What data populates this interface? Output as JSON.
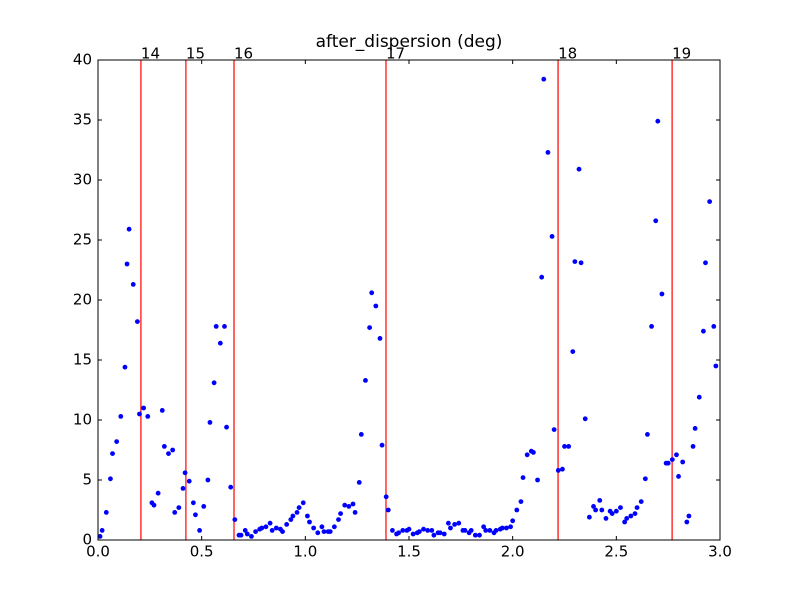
{
  "chart_data": {
    "type": "scatter",
    "title": "after_dispersion (deg)",
    "series": [
      {
        "color": "#0000ff",
        "x": [
          0.01,
          0.02,
          0.04,
          0.06,
          0.07,
          0.09,
          0.11,
          0.13,
          0.14,
          0.15,
          0.17,
          0.19,
          0.2,
          0.22,
          0.24,
          0.26,
          0.27,
          0.29,
          0.31,
          0.32,
          0.34,
          0.36,
          0.37,
          0.39,
          0.41,
          0.42,
          0.44,
          0.46,
          0.47,
          0.49,
          0.51,
          0.53,
          0.54,
          0.56,
          0.57,
          0.59,
          0.61,
          0.62,
          0.64,
          0.66,
          0.68,
          0.69,
          0.71,
          0.72,
          0.74,
          0.76,
          0.78,
          0.79,
          0.81,
          0.83,
          0.84,
          0.86,
          0.88,
          0.89,
          0.91,
          0.93,
          0.94,
          0.96,
          0.97,
          0.99,
          1.01,
          1.02,
          1.04,
          1.06,
          1.08,
          1.09,
          1.11,
          1.12,
          1.14,
          1.16,
          1.17,
          1.19,
          1.21,
          1.23,
          1.24,
          1.26,
          1.27,
          1.29,
          1.31,
          1.32,
          1.34,
          1.36,
          1.37,
          1.39,
          1.4,
          1.42,
          1.44,
          1.45,
          1.47,
          1.49,
          1.5,
          1.52,
          1.54,
          1.55,
          1.57,
          1.59,
          1.61,
          1.62,
          1.64,
          1.65,
          1.67,
          1.69,
          1.7,
          1.72,
          1.74,
          1.76,
          1.77,
          1.79,
          1.8,
          1.82,
          1.84,
          1.86,
          1.87,
          1.89,
          1.91,
          1.92,
          1.94,
          1.95,
          1.97,
          1.99,
          2.0,
          2.02,
          2.04,
          2.05,
          2.07,
          2.09,
          2.1,
          2.12,
          2.14,
          2.15,
          2.17,
          2.19,
          2.2,
          2.22,
          2.24,
          2.25,
          2.27,
          2.29,
          2.3,
          2.32,
          2.33,
          2.35,
          2.37,
          2.39,
          2.4,
          2.42,
          2.43,
          2.45,
          2.47,
          2.48,
          2.5,
          2.52,
          2.54,
          2.55,
          2.57,
          2.59,
          2.6,
          2.62,
          2.64,
          2.65,
          2.67,
          2.69,
          2.7,
          2.72,
          2.74,
          2.75,
          2.77,
          2.79,
          2.8,
          2.82,
          2.84,
          2.85,
          2.87,
          2.88,
          2.9,
          2.92,
          2.93,
          2.95,
          2.97,
          2.98
        ],
        "values": [
          0.3,
          0.8,
          2.3,
          5.1,
          7.2,
          8.2,
          10.3,
          14.4,
          23,
          25.9,
          21.3,
          18.2,
          10.5,
          11,
          10.3,
          3.1,
          2.9,
          3.9,
          10.8,
          7.8,
          7.2,
          7.5,
          2.3,
          2.7,
          4.3,
          5.6,
          4.9,
          3.1,
          2.1,
          0.8,
          2.8,
          5.0,
          9.8,
          13.1,
          17.8,
          16.4,
          17.8,
          9.4,
          4.4,
          1.7,
          0.4,
          0.4,
          0.8,
          0.5,
          0.3,
          0.7,
          0.9,
          1.0,
          1.1,
          1.4,
          0.8,
          1.0,
          0.9,
          0.7,
          1.3,
          1.7,
          2.0,
          2.3,
          2.7,
          3.1,
          2.0,
          1.5,
          1.0,
          0.6,
          1.1,
          0.7,
          0.7,
          0.7,
          1.1,
          1.7,
          2.2,
          2.9,
          2.8,
          3.0,
          2.3,
          4.8,
          8.8,
          13.3,
          17.7,
          20.6,
          19.5,
          16.8,
          7.9,
          3.6,
          2.5,
          0.8,
          0.5,
          0.6,
          0.8,
          0.8,
          0.9,
          0.5,
          0.6,
          0.7,
          0.9,
          0.8,
          0.8,
          0.4,
          0.6,
          0.6,
          0.5,
          1.4,
          1.0,
          1.3,
          1.4,
          0.8,
          0.8,
          0.6,
          0.8,
          0.4,
          0.4,
          1.1,
          0.8,
          0.8,
          0.6,
          0.8,
          0.9,
          1.0,
          1.0,
          1.1,
          1.6,
          2.5,
          3.2,
          5.2,
          7.1,
          7.4,
          7.3,
          5.0,
          21.9,
          38.4,
          32.3,
          25.3,
          9.2,
          5.8,
          5.9,
          7.8,
          7.8,
          15.7,
          23.2,
          30.9,
          23.1,
          10.1,
          1.9,
          2.8,
          2.5,
          3.3,
          2.5,
          1.8,
          2.4,
          2.2,
          2.4,
          2.7,
          1.5,
          1.8,
          2.0,
          2.2,
          2.7,
          3.2,
          5.1,
          8.8,
          17.8,
          26.6,
          34.9,
          20.5,
          6.4,
          6.4,
          6.7,
          7.1,
          5.3,
          6.5,
          1.5,
          2.0,
          7.8,
          9.3,
          11.9,
          17.4,
          23.1,
          28.2,
          17.8,
          14.5
        ]
      }
    ],
    "vlines": [
      {
        "x": 0.207,
        "label": "14"
      },
      {
        "x": 0.424,
        "label": "15"
      },
      {
        "x": 0.656,
        "label": "16"
      },
      {
        "x": 1.389,
        "label": "17"
      },
      {
        "x": 2.219,
        "label": "18"
      },
      {
        "x": 2.769,
        "label": "19"
      }
    ],
    "vline_color": "#ff0000",
    "xlim": [
      0,
      3
    ],
    "ylim": [
      0,
      40
    ],
    "xticks": [
      {
        "value": 0,
        "label": "0.0"
      },
      {
        "value": 0.5,
        "label": "0.5"
      },
      {
        "value": 1,
        "label": "1.0"
      },
      {
        "value": 1.5,
        "label": "1.5"
      },
      {
        "value": 2,
        "label": "2.0"
      },
      {
        "value": 2.5,
        "label": "2.5"
      },
      {
        "value": 3,
        "label": "3.0"
      }
    ],
    "yticks": [
      0,
      5,
      10,
      15,
      20,
      25,
      30,
      35,
      40
    ],
    "grid": false
  }
}
